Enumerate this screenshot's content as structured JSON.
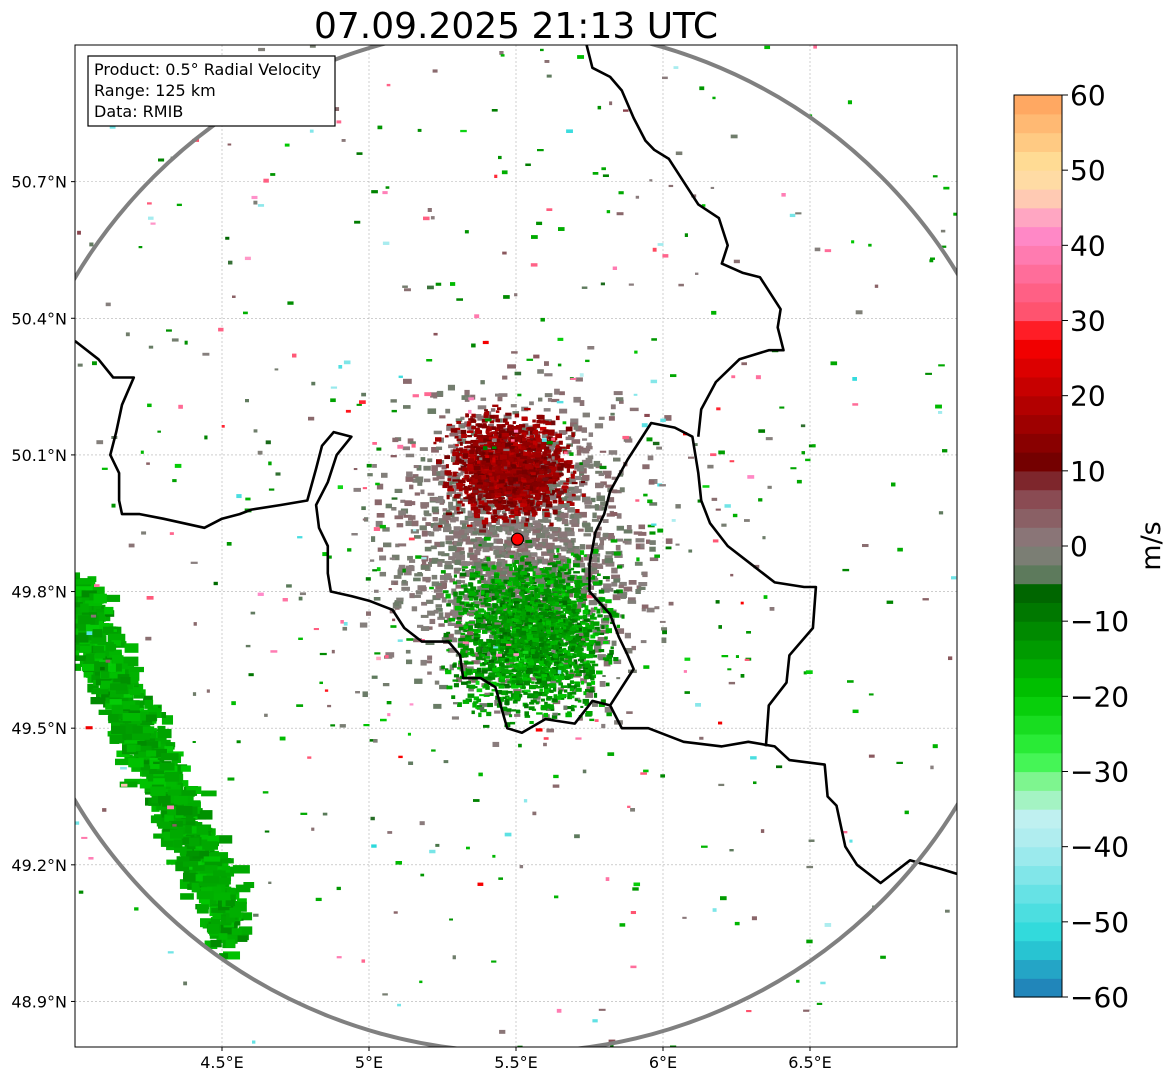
{
  "title": "07.09.2025 21:13 UTC",
  "info_box": {
    "lines": [
      "Product: 0.5° Radial Velocity",
      "Range: 125 km",
      "Data: RMIB"
    ]
  },
  "colorbar": {
    "label": "m/s",
    "ticks": [
      "60",
      "50",
      "40",
      "30",
      "20",
      "10",
      "0",
      "−10",
      "−20",
      "−30",
      "−40",
      "−50",
      "−60"
    ],
    "tick_values": [
      60,
      50,
      40,
      30,
      20,
      10,
      0,
      -10,
      -20,
      -30,
      -40,
      -50,
      -60
    ],
    "stops": [
      {
        "v": -60,
        "color": "#1f77b4"
      },
      {
        "v": -52,
        "color": "#2ad9db"
      },
      {
        "v": -40,
        "color": "#a8ecef"
      },
      {
        "v": -36,
        "color": "#c0f0f0"
      },
      {
        "v": -32,
        "color": "#8ff5a0"
      },
      {
        "v": -28,
        "color": "#34f545"
      },
      {
        "v": -20,
        "color": "#00c800"
      },
      {
        "v": -6,
        "color": "#006400"
      },
      {
        "v": -4,
        "color": "#5a7a5a"
      },
      {
        "v": 0,
        "color": "#8a8080"
      },
      {
        "v": 8,
        "color": "#8a3c46"
      },
      {
        "v": 10,
        "color": "#6a0000"
      },
      {
        "v": 28,
        "color": "#ff0000"
      },
      {
        "v": 30,
        "color": "#ff4c64"
      },
      {
        "v": 42,
        "color": "#ff8ccc"
      },
      {
        "v": 46,
        "color": "#ffc8b4"
      },
      {
        "v": 50,
        "color": "#ffe39c"
      },
      {
        "v": 60,
        "color": "#ffa05a"
      }
    ]
  },
  "chart_data": {
    "type": "heatmap",
    "title": "07.09.2025 21:13 UTC",
    "xlabel": "",
    "ylabel": "",
    "xlim": [
      4.0,
      7.0
    ],
    "ylim": [
      48.8,
      51.0
    ],
    "x_ticks": [
      4.5,
      5.0,
      5.5,
      6.0,
      6.5
    ],
    "x_tick_labels": [
      "4.5°E",
      "5°E",
      "5.5°E",
      "6°E",
      "6.5°E"
    ],
    "y_ticks": [
      48.9,
      49.2,
      49.5,
      49.8,
      50.1,
      50.4,
      50.7
    ],
    "y_tick_labels": [
      "48.9°N",
      "49.2°N",
      "49.5°N",
      "49.8°N",
      "50.1°N",
      "50.4°N",
      "50.7°N"
    ],
    "grid": true,
    "radar_site": {
      "lon": 5.505,
      "lat": 49.915
    },
    "range_ring_km": 125,
    "colorbar_range": [
      -60,
      60
    ],
    "colorbar_unit": "m/s",
    "echo_regions": [
      {
        "name": "receding core north of radar",
        "lon": 5.48,
        "lat": 50.07,
        "velocity": 15
      },
      {
        "name": "approaching core south of radar",
        "lon": 5.55,
        "lat": 49.7,
        "velocity": -14
      },
      {
        "name": "near-zero clutter ring",
        "lon": 5.5,
        "lat": 49.9,
        "velocity": 0
      },
      {
        "name": "south-west green band",
        "lon": 4.25,
        "lat": 49.45,
        "velocity": -16
      }
    ],
    "borders": [
      [
        [
          4.0,
          50.35
        ],
        [
          4.08,
          50.31
        ],
        [
          4.13,
          50.27
        ],
        [
          4.2,
          50.27
        ],
        [
          4.16,
          50.21
        ],
        [
          4.14,
          50.15
        ],
        [
          4.12,
          50.1
        ],
        [
          4.15,
          50.06
        ],
        [
          4.15,
          50.0
        ],
        [
          4.16,
          49.97
        ],
        [
          4.22,
          49.97
        ],
        [
          4.3,
          49.96
        ],
        [
          4.44,
          49.94
        ],
        [
          4.5,
          49.96
        ],
        [
          4.56,
          49.97
        ],
        [
          4.6,
          49.98
        ],
        [
          4.7,
          49.99
        ],
        [
          4.79,
          50.0
        ],
        [
          4.82,
          50.07
        ],
        [
          4.84,
          50.12
        ],
        [
          4.88,
          50.15
        ],
        [
          4.94,
          50.14
        ],
        [
          4.89,
          50.1
        ],
        [
          4.86,
          50.04
        ],
        [
          4.82,
          49.99
        ],
        [
          4.83,
          49.94
        ],
        [
          4.86,
          49.9
        ],
        [
          4.86,
          49.84
        ],
        [
          4.87,
          49.8
        ],
        [
          4.94,
          49.79
        ],
        [
          5.0,
          49.78
        ],
        [
          5.08,
          49.76
        ],
        [
          5.12,
          49.72
        ],
        [
          5.18,
          49.69
        ],
        [
          5.27,
          49.69
        ],
        [
          5.31,
          49.66
        ],
        [
          5.32,
          49.61
        ],
        [
          5.38,
          49.61
        ],
        [
          5.43,
          49.59
        ],
        [
          5.47,
          49.5
        ],
        [
          5.52,
          49.49
        ],
        [
          5.6,
          49.52
        ],
        [
          5.7,
          49.51
        ],
        [
          5.76,
          49.56
        ],
        [
          5.82,
          49.55
        ],
        [
          5.86,
          49.5
        ],
        [
          5.95,
          49.5
        ],
        [
          6.07,
          49.47
        ],
        [
          6.2,
          49.46
        ],
        [
          6.29,
          49.47
        ],
        [
          6.38,
          49.46
        ],
        [
          6.43,
          49.43
        ],
        [
          6.55,
          49.42
        ],
        [
          6.56,
          49.35
        ],
        [
          6.59,
          49.33
        ],
        [
          6.62,
          49.24
        ],
        [
          6.66,
          49.2
        ],
        [
          6.74,
          49.16
        ],
        [
          6.84,
          49.21
        ],
        [
          6.95,
          49.19
        ],
        [
          7.0,
          49.18
        ]
      ],
      [
        [
          5.82,
          49.55
        ],
        [
          5.9,
          49.63
        ],
        [
          5.88,
          49.66
        ],
        [
          5.85,
          49.7
        ],
        [
          5.82,
          49.75
        ],
        [
          5.75,
          49.8
        ],
        [
          5.75,
          49.86
        ],
        [
          5.77,
          49.93
        ],
        [
          5.8,
          49.97
        ],
        [
          5.82,
          50.02
        ],
        [
          5.88,
          50.09
        ],
        [
          5.96,
          50.17
        ],
        [
          6.04,
          50.16
        ],
        [
          6.1,
          50.14
        ],
        [
          6.12,
          50.06
        ],
        [
          6.13,
          50.0
        ],
        [
          6.16,
          49.95
        ],
        [
          6.22,
          49.9
        ],
        [
          6.3,
          49.86
        ],
        [
          6.38,
          49.82
        ],
        [
          6.48,
          49.81
        ],
        [
          6.52,
          49.81
        ],
        [
          6.51,
          49.72
        ],
        [
          6.43,
          49.66
        ],
        [
          6.42,
          49.6
        ],
        [
          6.36,
          49.55
        ],
        [
          6.35,
          49.46
        ]
      ],
      [
        [
          6.12,
          50.14
        ],
        [
          6.13,
          50.2
        ],
        [
          6.18,
          50.26
        ],
        [
          6.26,
          50.31
        ],
        [
          6.36,
          50.33
        ],
        [
          6.41,
          50.33
        ],
        [
          6.39,
          50.38
        ],
        [
          6.4,
          50.42
        ],
        [
          6.33,
          50.49
        ],
        [
          6.27,
          50.5
        ],
        [
          6.2,
          50.52
        ],
        [
          6.22,
          50.56
        ],
        [
          6.19,
          50.62
        ],
        [
          6.12,
          50.65
        ],
        [
          6.06,
          50.71
        ],
        [
          6.02,
          50.75
        ],
        [
          5.97,
          50.77
        ],
        [
          5.94,
          50.79
        ],
        [
          5.9,
          50.84
        ],
        [
          5.86,
          50.9
        ],
        [
          5.82,
          50.93
        ],
        [
          5.76,
          50.95
        ],
        [
          5.74,
          51.0
        ]
      ]
    ],
    "range_ring_color": "#808080"
  }
}
